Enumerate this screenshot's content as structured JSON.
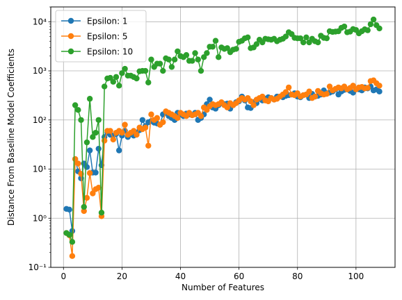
{
  "chart_data": {
    "type": "line",
    "title": "",
    "xlabel": "Number of Features",
    "ylabel": "Distance From Baseline Model Coefficients",
    "yscale": "log",
    "xlim": [
      -4.35,
      113.35
    ],
    "ylim": [
      0.1,
      20000
    ],
    "grid": true,
    "legend_position": "upper-left",
    "x_ticks": [
      0,
      20,
      40,
      60,
      80,
      100
    ],
    "x_tick_labels": [
      "0",
      "20",
      "40",
      "60",
      "80",
      "100"
    ],
    "y_ticks": [
      0.1,
      1,
      10,
      100,
      1000,
      10000
    ],
    "y_tick_labels": [
      "10⁻¹",
      "10⁰",
      "10¹",
      "10²",
      "10³",
      "10⁴"
    ],
    "x": [
      1,
      2,
      3,
      4,
      5,
      6,
      7,
      8,
      9,
      10,
      11,
      12,
      13,
      14,
      15,
      16,
      17,
      18,
      19,
      20,
      21,
      22,
      23,
      24,
      25,
      26,
      27,
      28,
      29,
      30,
      31,
      32,
      33,
      34,
      35,
      36,
      37,
      38,
      39,
      40,
      41,
      42,
      43,
      44,
      45,
      46,
      47,
      48,
      49,
      50,
      51,
      52,
      53,
      54,
      55,
      56,
      57,
      58,
      59,
      60,
      61,
      62,
      63,
      64,
      65,
      66,
      67,
      68,
      69,
      70,
      71,
      72,
      73,
      74,
      75,
      76,
      77,
      78,
      79,
      80,
      81,
      82,
      83,
      84,
      85,
      86,
      87,
      88,
      89,
      90,
      91,
      92,
      93,
      94,
      95,
      96,
      97,
      98,
      99,
      100,
      101,
      102,
      103,
      104,
      105,
      106,
      107,
      108
    ],
    "series": [
      {
        "name": "Epsilon: 1",
        "color": "#1f77b4",
        "values": [
          1.55,
          1.5,
          0.55,
          16,
          9,
          6.5,
          13,
          11,
          24,
          8.5,
          8.5,
          26,
          12,
          45,
          55,
          50,
          48,
          52,
          24,
          48,
          60,
          45,
          52,
          48,
          55,
          62,
          100,
          75,
          90,
          95,
          88,
          85,
          80,
          130,
          140,
          120,
          110,
          100,
          140,
          130,
          120,
          135,
          130,
          125,
          140,
          100,
          110,
          130,
          210,
          260,
          180,
          170,
          200,
          220,
          210,
          215,
          170,
          200,
          230,
          240,
          300,
          250,
          180,
          175,
          230,
          220,
          270,
          250,
          270,
          290,
          280,
          260,
          300,
          300,
          290,
          310,
          320,
          330,
          350,
          300,
          290,
          320,
          330,
          280,
          340,
          300,
          310,
          330,
          400,
          350,
          360,
          380,
          420,
          330,
          380,
          410,
          420,
          390,
          360,
          420,
          420,
          400,
          460,
          440,
          480,
          400,
          420,
          380
        ]
      },
      {
        "name": "Epsilon: 5",
        "color": "#ff7f0e",
        "values": [
          0.5,
          0.45,
          0.17,
          16,
          13,
          8,
          1.4,
          2.6,
          8.3,
          3.2,
          3.9,
          4.2,
          1.1,
          38,
          60,
          60,
          40,
          55,
          60,
          55,
          80,
          50,
          55,
          60,
          50,
          70,
          65,
          70,
          30,
          130,
          100,
          110,
          80,
          90,
          150,
          140,
          130,
          120,
          110,
          140,
          130,
          120,
          140,
          125,
          130,
          140,
          120,
          180,
          160,
          190,
          210,
          200,
          210,
          230,
          200,
          180,
          220,
          200,
          220,
          250,
          280,
          260,
          280,
          240,
          200,
          260,
          280,
          300,
          250,
          240,
          280,
          260,
          270,
          300,
          330,
          370,
          460,
          330,
          320,
          350,
          300,
          320,
          330,
          380,
          280,
          300,
          390,
          350,
          330,
          340,
          480,
          400,
          430,
          460,
          440,
          480,
          420,
          450,
          500,
          420,
          460,
          470,
          440,
          450,
          620,
          640,
          560,
          500
        ]
      },
      {
        "name": "Epsilon: 10",
        "color": "#2ca02c",
        "values": [
          0.5,
          0.46,
          0.33,
          200,
          160,
          100,
          1.7,
          35,
          270,
          45,
          55,
          100,
          1.3,
          480,
          700,
          720,
          600,
          750,
          500,
          900,
          1100,
          800,
          800,
          750,
          700,
          980,
          1000,
          1000,
          580,
          1700,
          1200,
          1400,
          1400,
          1000,
          1800,
          1700,
          1200,
          1700,
          2500,
          2000,
          1900,
          2100,
          1600,
          1600,
          2300,
          1700,
          1000,
          1900,
          2300,
          3100,
          3100,
          4100,
          1900,
          3000,
          2800,
          2900,
          2400,
          2700,
          2800,
          3900,
          4100,
          4600,
          4800,
          2900,
          3000,
          3500,
          4300,
          3800,
          4500,
          4400,
          4300,
          4500,
          4000,
          4300,
          4500,
          5000,
          6100,
          5600,
          4700,
          4600,
          4600,
          3800,
          4800,
          3800,
          4500,
          4000,
          3800,
          5200,
          4700,
          4600,
          6400,
          6200,
          6300,
          6400,
          7500,
          8000,
          6100,
          6300,
          7100,
          6800,
          5800,
          6400,
          7000,
          6700,
          8900,
          11100,
          8500,
          7300
        ]
      }
    ]
  }
}
